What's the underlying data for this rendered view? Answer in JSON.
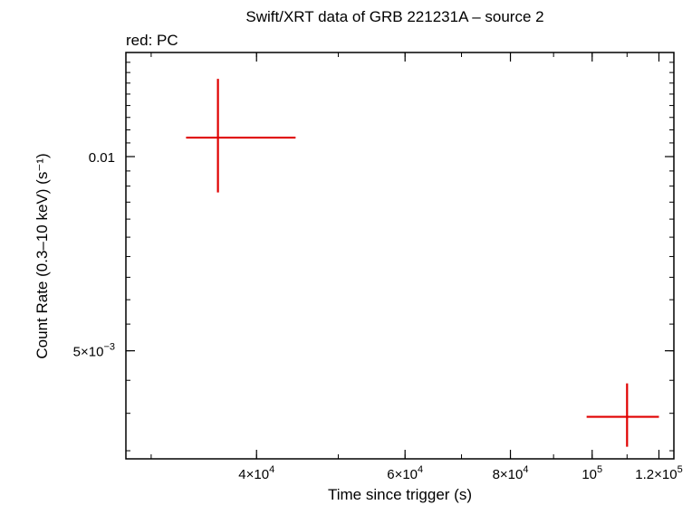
{
  "chart_data": {
    "type": "scatter",
    "title": "Swift/XRT data of GRB 221231A – source 2",
    "subtitle": "red: PC",
    "xlabel": "Time since trigger (s)",
    "ylabel": "Count Rate (0.3–10 keV) (s⁻¹)",
    "x_scale": "log",
    "y_scale": "log",
    "xlim": [
      28000,
      125000
    ],
    "ylim": [
      0.0034,
      0.0145
    ],
    "x_ticks": [
      {
        "value": 40000,
        "label": "4×10⁴"
      },
      {
        "value": 60000,
        "label": "6×10⁴"
      },
      {
        "value": 80000,
        "label": "8×10⁴"
      },
      {
        "value": 100000,
        "label": "10⁵"
      },
      {
        "value": 120000,
        "label": "1.2×10⁵"
      }
    ],
    "y_ticks": [
      {
        "value": 0.01,
        "label": "0.01"
      },
      {
        "value": 0.005,
        "label": "5×10⁻³"
      }
    ],
    "series": [
      {
        "color": "#e00000",
        "points": [
          {
            "x": 36000,
            "y": 0.0107,
            "xerr": [
              33000,
              44500
            ],
            "yerr": [
              0.0088,
              0.0132
            ]
          },
          {
            "x": 110000,
            "y": 0.00395,
            "xerr": [
              98500,
              120000
            ],
            "yerr": [
              0.00355,
              0.00445
            ]
          }
        ]
      }
    ],
    "grid": false
  }
}
